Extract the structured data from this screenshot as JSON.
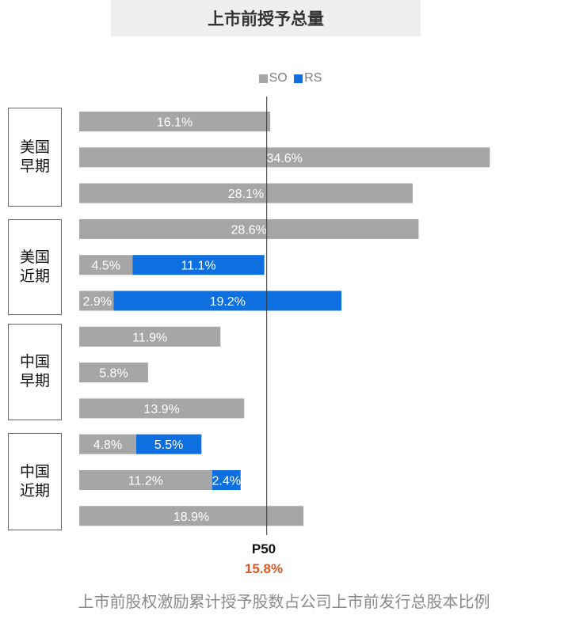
{
  "header": {
    "title": "上市前授予总量"
  },
  "legend": [
    {
      "label": "SO",
      "color": "#a6a6a6"
    },
    {
      "label": "RS",
      "color": "#0d6fe0"
    }
  ],
  "groups": [
    {
      "line1": "美国",
      "line2": "早期"
    },
    {
      "line1": "美国",
      "line2": "近期"
    },
    {
      "line1": "中国",
      "line2": "早期"
    },
    {
      "line1": "中国",
      "line2": "近期"
    }
  ],
  "p50": {
    "label": "P50",
    "value": "15.8%"
  },
  "caption": "上市前股权激励累计授予股数占公司上市前发行总股本比例",
  "chart_data": {
    "type": "bar",
    "orientation": "horizontal",
    "stacked": true,
    "xlim": [
      0,
      35
    ],
    "reference_line": {
      "label": "P50",
      "value": 15.8
    },
    "series_colors": {
      "SO": "#a6a6a6",
      "RS": "#0d6fe0"
    },
    "rows": [
      {
        "group": "美国早期",
        "SO": 16.1,
        "RS": 0,
        "labels": [
          "16.1%"
        ]
      },
      {
        "group": "美国早期",
        "SO": 34.6,
        "RS": 0,
        "labels": [
          "34.6%"
        ]
      },
      {
        "group": "美国早期",
        "SO": 28.1,
        "RS": 0,
        "labels": [
          "28.1%"
        ]
      },
      {
        "group": "美国近期",
        "SO": 28.6,
        "RS": 0,
        "labels": [
          "28.6%"
        ]
      },
      {
        "group": "美国近期",
        "SO": 4.5,
        "RS": 11.1,
        "labels": [
          "4.5%",
          "11.1%"
        ]
      },
      {
        "group": "美国近期",
        "SO": 2.9,
        "RS": 19.2,
        "labels": [
          "2.9%",
          "19.2%"
        ]
      },
      {
        "group": "中国早期",
        "SO": 11.9,
        "RS": 0,
        "labels": [
          "11.9%"
        ]
      },
      {
        "group": "中国早期",
        "SO": 5.8,
        "RS": 0,
        "labels": [
          "5.8%"
        ]
      },
      {
        "group": "中国早期",
        "SO": 13.9,
        "RS": 0,
        "labels": [
          "13.9%"
        ]
      },
      {
        "group": "中国近期",
        "SO": 4.8,
        "RS": 5.5,
        "labels": [
          "4.8%",
          "5.5%"
        ]
      },
      {
        "group": "中国近期",
        "SO": 11.2,
        "RS": 2.4,
        "labels": [
          "11.2%",
          "2.4%"
        ]
      },
      {
        "group": "中国近期",
        "SO": 18.9,
        "RS": 0,
        "labels": [
          "18.9%"
        ]
      }
    ]
  }
}
